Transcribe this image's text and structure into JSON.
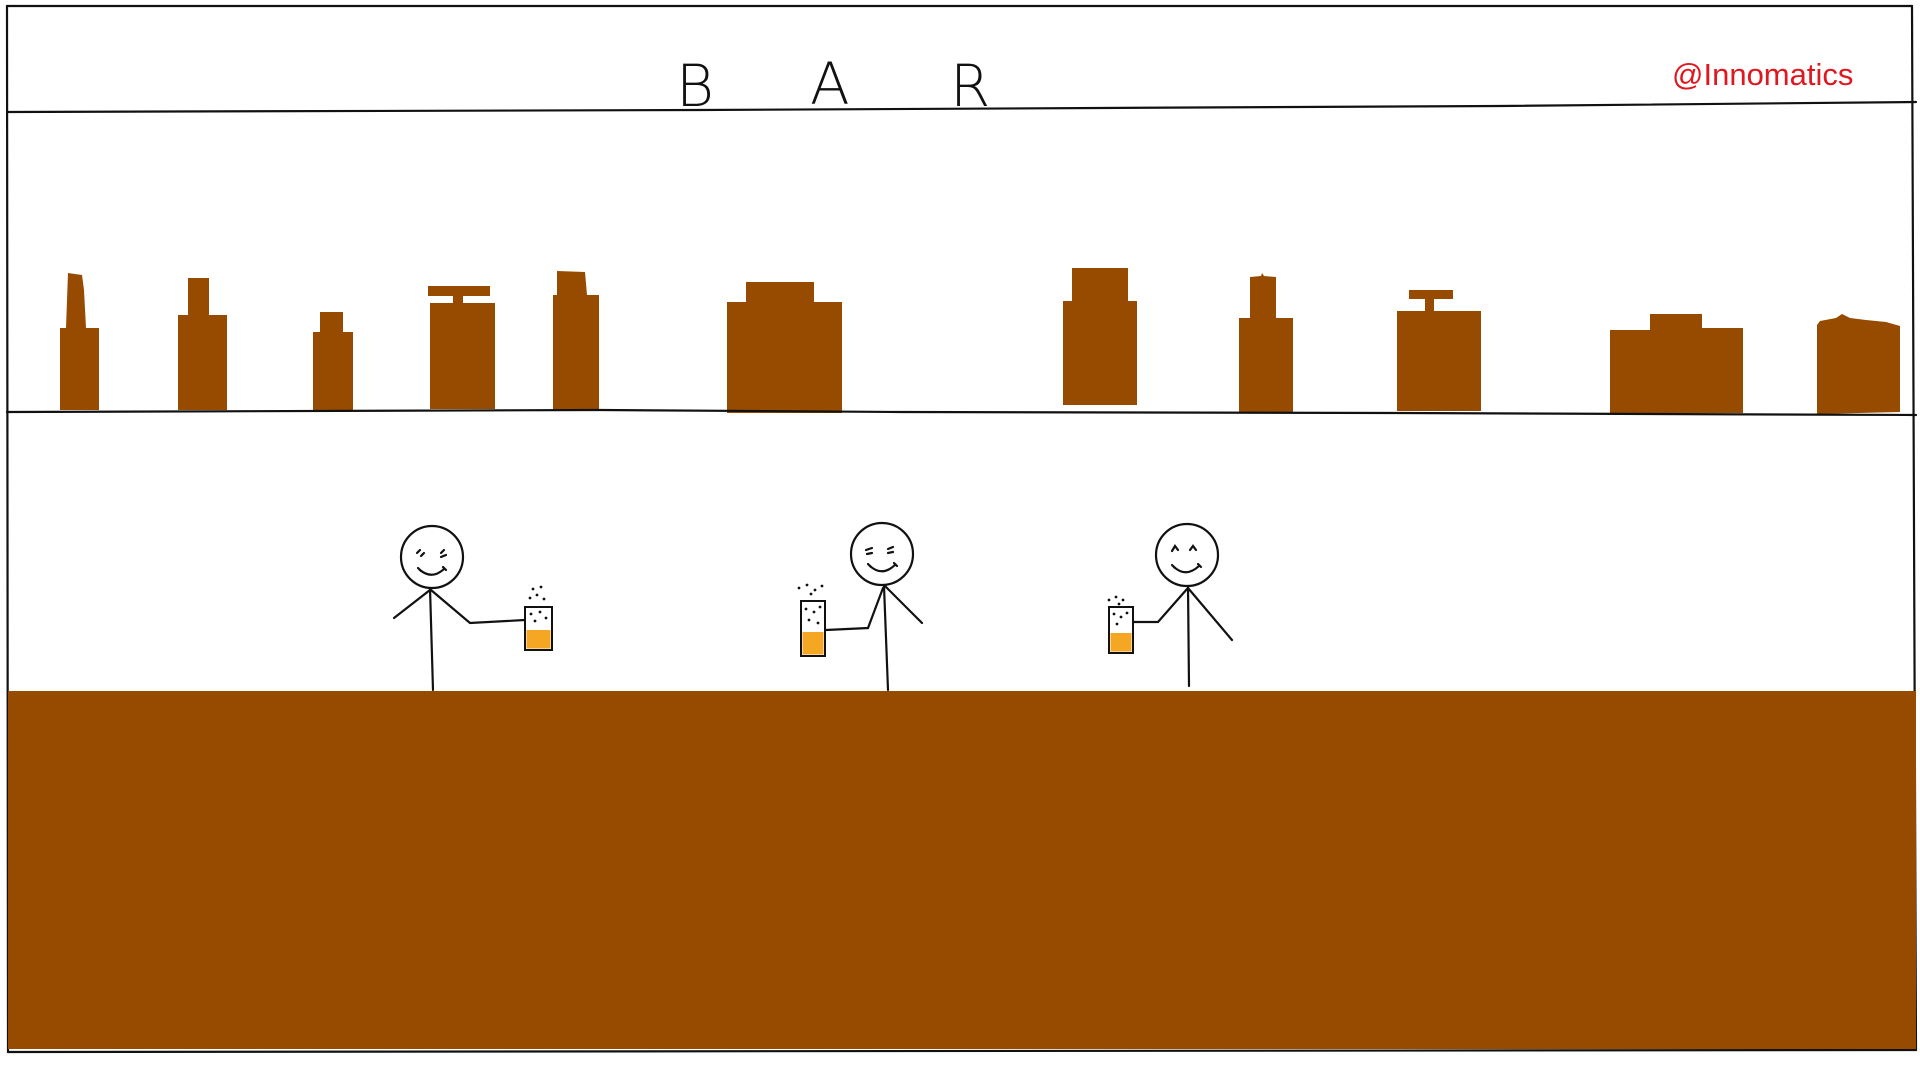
{
  "scene": {
    "title_letters": [
      "B",
      "A",
      "R"
    ],
    "watermark": "@Innomatics",
    "colors": {
      "wood": "#964B00",
      "beer": "#f5a623",
      "ink": "#111111",
      "watermark": "#e0171f",
      "background": "#ffffff"
    },
    "shelf": {
      "bottle_count": 11
    },
    "people": [
      {
        "name": "person-left",
        "glass_hand": "right"
      },
      {
        "name": "person-middle",
        "glass_hand": "left"
      },
      {
        "name": "person-right",
        "glass_hand": "left"
      }
    ]
  }
}
